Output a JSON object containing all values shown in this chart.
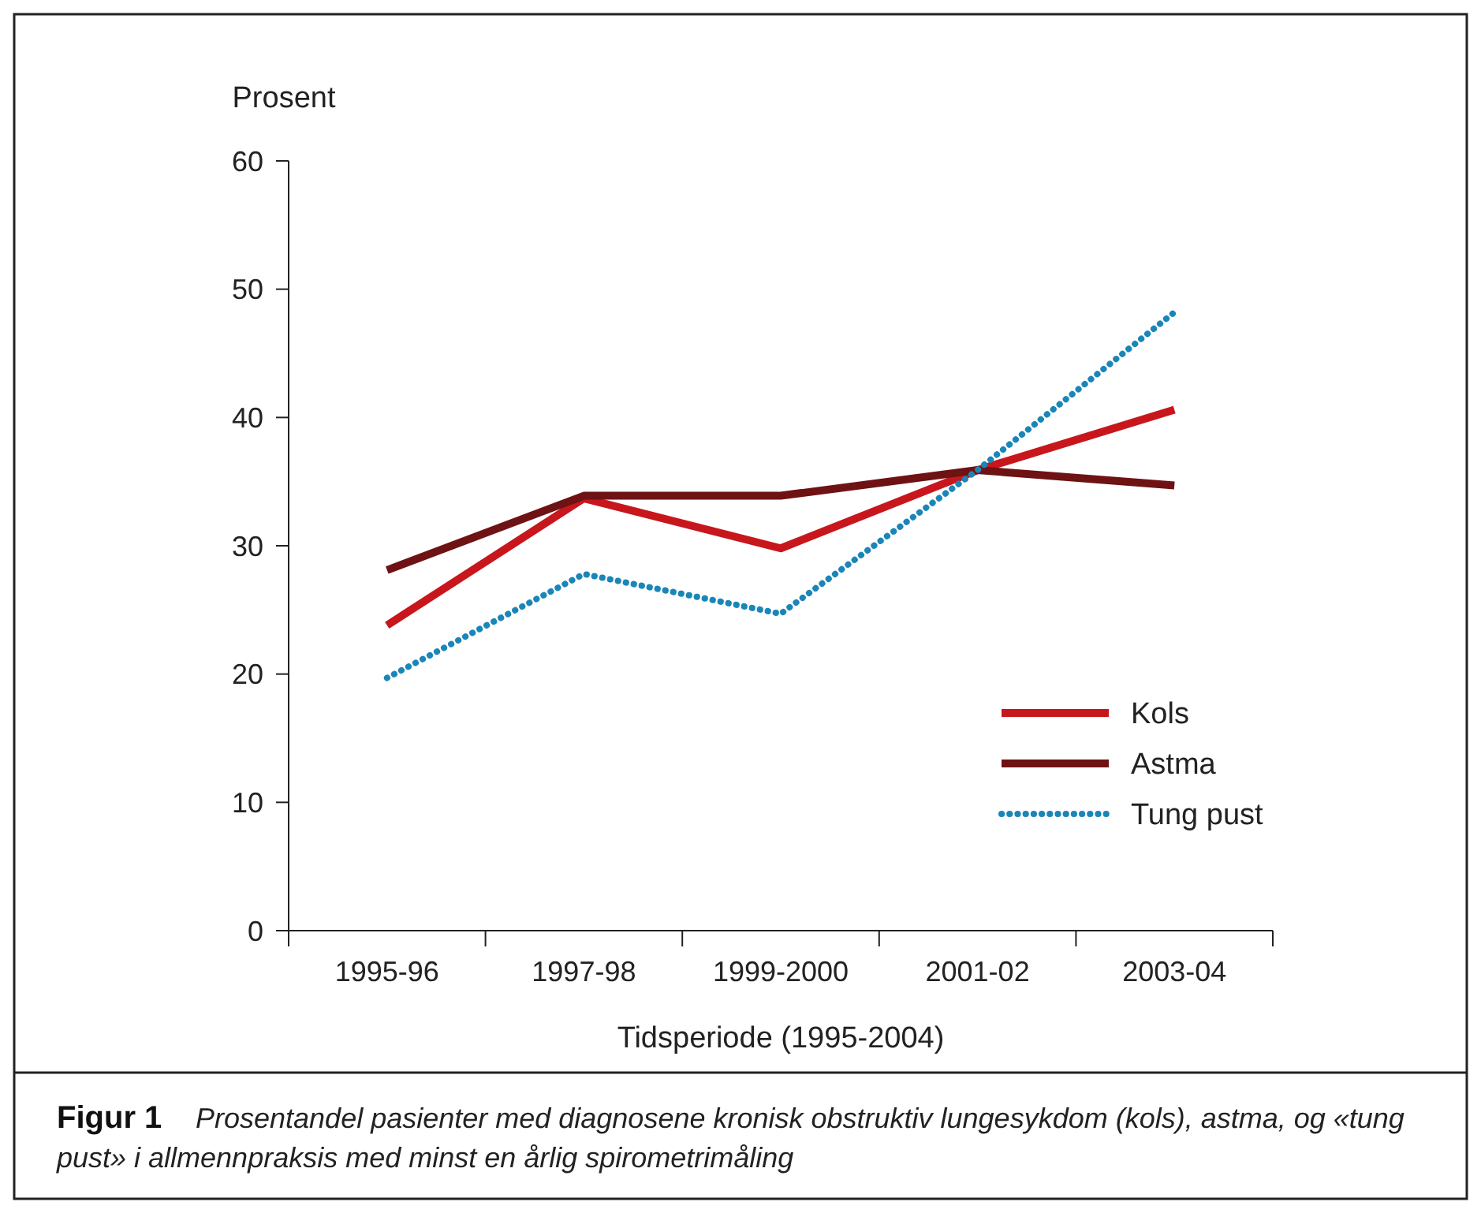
{
  "chart_data": {
    "type": "line",
    "ylabel": "Prosent",
    "xlabel": "Tidsperiode (1995-2004)",
    "categories": [
      "1995-96",
      "1997-98",
      "1999-2000",
      "2001-02",
      "2003-04"
    ],
    "series": [
      {
        "name": "Kols",
        "color": "#c8161d",
        "values": [
          23.8,
          33.7,
          29.8,
          35.9,
          40.6
        ]
      },
      {
        "name": "Astma",
        "color": "#6e1214",
        "values": [
          28.1,
          33.9,
          33.9,
          35.9,
          34.7
        ]
      },
      {
        "name": "Tung pust",
        "color": "#1a86b8",
        "values": [
          19.7,
          27.8,
          24.7,
          35.9,
          48.2
        ],
        "line_style": "dotted"
      }
    ],
    "ylim": [
      0,
      60
    ],
    "yticks": [
      0,
      10,
      20,
      30,
      40,
      50,
      60
    ],
    "grid": false,
    "legend": "bottom right",
    "line_style": "solid",
    "annotations": [
      "Figur 1",
      "Prosentandel pasienter med diagnosene kronisk obstruktiv lungesykdom (kols), astma, og «tung pust» i allmennpraksis med minst en årlig spirometrimåling"
    ]
  }
}
